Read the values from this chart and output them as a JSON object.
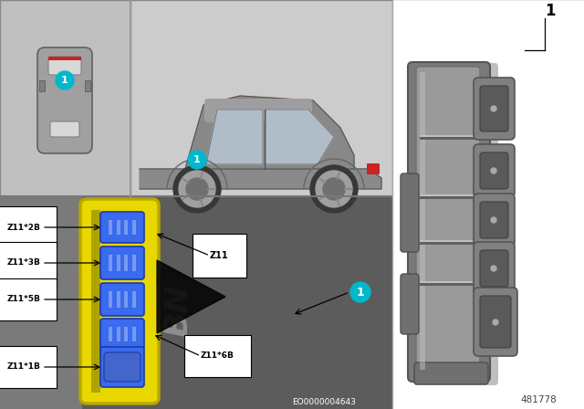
{
  "bg_color": "#ffffff",
  "part_number": "481778",
  "eo_number": "EO0000004643",
  "teal_color": "#00b8cc",
  "yellow_color": "#e8d800",
  "blue_conn_color": "#2255bb",
  "blue_conn_dark": "#1133aa",
  "labels": [
    "Z11*2B",
    "Z11*3B",
    "Z11*5B",
    "Z11*6B",
    "Z11*1B"
  ],
  "label_z11": "Z11",
  "label_1": "1",
  "panel_top_left_bg": "#c0c0c0",
  "panel_top_right_bg": "#cccccc",
  "panel_bottom_bg": "#6a6a6a",
  "panel_right_bg": "#ffffff",
  "car_body": "#909090",
  "car_dark": "#606060",
  "car_window": "#b8c8d0",
  "car_shadow": "#505050",
  "comp_body": "#909090",
  "comp_light": "#b0b0b0",
  "comp_dark": "#707070",
  "comp_shadow": "#505050",
  "comp_highlight": "#c8c8c8",
  "separator_color": "#888888",
  "module_outline": "#b8a800",
  "module_bg": "#d4c000",
  "conn_inner": "#3a6aee",
  "conn_outer": "#1a3aaa"
}
